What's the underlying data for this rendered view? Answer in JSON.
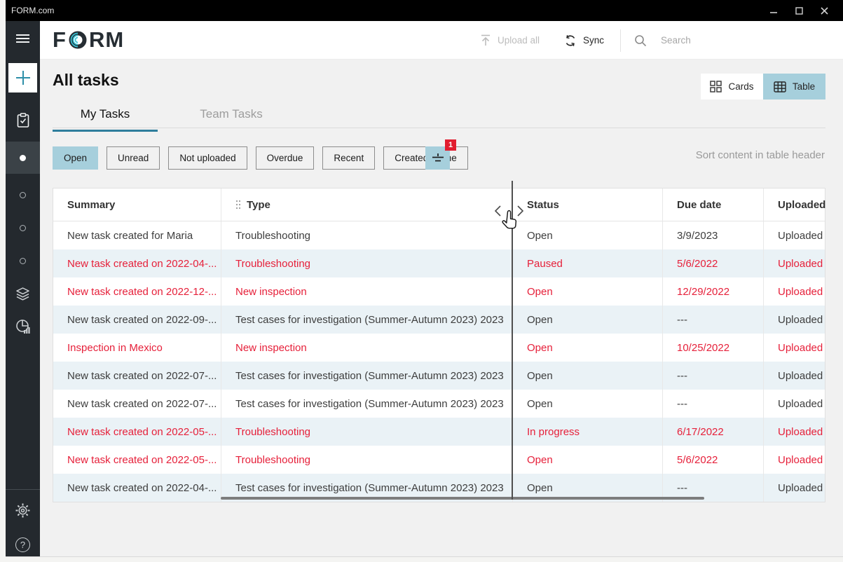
{
  "titlebar": {
    "app_title": "FORM.com"
  },
  "header": {
    "logo_text": "FORM",
    "upload_all_label": "Upload all",
    "sync_label": "Sync",
    "search_placeholder": "Search"
  },
  "sidebar": {
    "items": [
      "menu",
      "create-new",
      "tasks",
      "current-task-list",
      "list-1",
      "list-2",
      "list-3",
      "layers",
      "analytics",
      "settings",
      "help"
    ]
  },
  "page": {
    "title": "All tasks",
    "view_toggle": {
      "cards_label": "Cards",
      "table_label": "Table",
      "selected": "Table"
    },
    "tabs": [
      {
        "label": "My Tasks",
        "active": true
      },
      {
        "label": "Team Tasks",
        "active": false
      }
    ],
    "filter_chips": [
      {
        "label": "Open",
        "selected": true
      },
      {
        "label": "Unread",
        "selected": false
      },
      {
        "label": "Not uploaded",
        "selected": false
      },
      {
        "label": "Overdue",
        "selected": false
      },
      {
        "label": "Recent",
        "selected": false
      },
      {
        "label": "Created by me",
        "selected": false
      }
    ],
    "filter_badge": "1",
    "sort_hint": "Sort content in table header"
  },
  "table": {
    "columns": [
      "Summary",
      "Type",
      "Status",
      "Due date",
      "Uploaded"
    ],
    "rows": [
      {
        "summary": "New task created for Maria",
        "type": "Troubleshooting",
        "status": "Open",
        "due_date": "3/9/2023",
        "uploaded": "Uploaded",
        "alert": false
      },
      {
        "summary": "New task created on 2022-04-...",
        "type": "Troubleshooting",
        "status": "Paused",
        "due_date": "5/6/2022",
        "uploaded": "Uploaded",
        "alert": true
      },
      {
        "summary": "New task created on 2022-12-...",
        "type": "New inspection",
        "status": "Open",
        "due_date": "12/29/2022",
        "uploaded": "Uploaded",
        "alert": true
      },
      {
        "summary": "New task created on 2022-09-...",
        "type": "Test cases for investigation (Summer-Autumn 2023) 2023",
        "status": "Open",
        "due_date": "---",
        "uploaded": "Uploaded",
        "alert": false
      },
      {
        "summary": "Inspection in Mexico",
        "type": "New inspection",
        "status": "Open",
        "due_date": "10/25/2022",
        "uploaded": "Uploaded",
        "alert": true
      },
      {
        "summary": "New task created on 2022-07-...",
        "type": "Test cases for investigation (Summer-Autumn 2023) 2023",
        "status": "Open",
        "due_date": "---",
        "uploaded": "Uploaded",
        "alert": false
      },
      {
        "summary": "New task created on 2022-07-...",
        "type": "Test cases for investigation (Summer-Autumn 2023) 2023",
        "status": "Open",
        "due_date": "---",
        "uploaded": "Uploaded",
        "alert": false
      },
      {
        "summary": "New task created on 2022-05-...",
        "type": "Troubleshooting",
        "status": "In progress",
        "due_date": "6/17/2022",
        "uploaded": "Uploaded",
        "alert": true
      },
      {
        "summary": "New task created on 2022-05-...",
        "type": "Troubleshooting",
        "status": "Open",
        "due_date": "5/6/2022",
        "uploaded": "Uploaded",
        "alert": true
      },
      {
        "summary": "New task created on 2022-04-...",
        "type": "Test cases for investigation (Summer-Autumn 2023) 2023",
        "status": "Open",
        "due_date": "---",
        "uploaded": "Uploaded",
        "alert": false
      }
    ]
  },
  "colors": {
    "accent_teal": "#2e7e9c",
    "logo_cyan": "#35c3d6",
    "selected_blue": "#a6cfdc",
    "alert_red": "#e6203a",
    "badge_red": "#e11d2f",
    "sidebar_bg": "#24292e",
    "row_alt_bg": "#eaf2f6"
  }
}
